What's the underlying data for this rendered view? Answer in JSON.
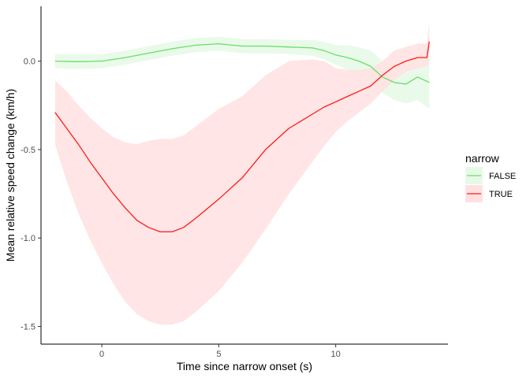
{
  "chart_data": {
    "type": "line",
    "xlabel": "Time since narrow onset (s)",
    "ylabel": "Mean relative speed change (km/h)",
    "xlim": [
      -2.6,
      14.8
    ],
    "ylim": [
      -1.6,
      0.31
    ],
    "x_ticks": [
      0,
      5,
      10
    ],
    "x_tick_labels": [
      "0",
      "5",
      "10"
    ],
    "y_ticks": [
      0.0,
      -0.5,
      -1.0,
      -1.5
    ],
    "y_tick_labels": [
      "0.0",
      "-0.5",
      "-1.0",
      "-1.5"
    ],
    "grid": false,
    "legend": {
      "title": "narrow",
      "position": "right"
    },
    "series": [
      {
        "name": "FALSE",
        "color": "#66e066",
        "band_color": "#e6f9e6",
        "x": [
          -2,
          -1,
          0,
          1,
          2,
          3,
          4,
          5,
          6,
          7,
          8,
          9,
          9.5,
          10,
          10.5,
          11,
          11.5,
          12,
          12.5,
          13,
          13.5,
          14
        ],
        "y": [
          0.0,
          -0.003,
          0.0,
          0.02,
          0.045,
          0.07,
          0.09,
          0.098,
          0.085,
          0.085,
          0.08,
          0.075,
          0.06,
          0.035,
          0.02,
          0.0,
          -0.03,
          -0.09,
          -0.12,
          -0.13,
          -0.09,
          -0.12
        ],
        "lower": [
          -0.04,
          -0.045,
          -0.04,
          -0.02,
          0.005,
          0.03,
          0.05,
          0.058,
          0.045,
          0.045,
          0.04,
          0.03,
          0.01,
          -0.02,
          -0.05,
          -0.08,
          -0.12,
          -0.18,
          -0.22,
          -0.24,
          -0.22,
          -0.27
        ],
        "upper": [
          0.04,
          0.04,
          0.04,
          0.06,
          0.085,
          0.11,
          0.13,
          0.138,
          0.125,
          0.125,
          0.12,
          0.12,
          0.11,
          0.09,
          0.09,
          0.08,
          0.06,
          0.0,
          -0.02,
          -0.03,
          0.03,
          0.03
        ]
      },
      {
        "name": "TRUE",
        "color": "#ff1a1a",
        "band_color": "#ffe0e0",
        "x": [
          -2,
          -1.5,
          -1,
          -0.5,
          0,
          0.5,
          1,
          1.5,
          2,
          2.5,
          3,
          3.5,
          4,
          5,
          6,
          7,
          8,
          9,
          9.5,
          10,
          10.5,
          11,
          11.5,
          12,
          12.5,
          13,
          13.5,
          13.9,
          14
        ],
        "y": [
          -0.29,
          -0.38,
          -0.47,
          -0.57,
          -0.66,
          -0.75,
          -0.83,
          -0.9,
          -0.94,
          -0.965,
          -0.965,
          -0.94,
          -0.89,
          -0.78,
          -0.66,
          -0.5,
          -0.38,
          -0.3,
          -0.26,
          -0.23,
          -0.2,
          -0.17,
          -0.14,
          -0.08,
          -0.03,
          0.0,
          0.02,
          0.02,
          0.11
        ],
        "lower": [
          -0.47,
          -0.68,
          -0.86,
          -1.01,
          -1.14,
          -1.26,
          -1.36,
          -1.43,
          -1.47,
          -1.49,
          -1.49,
          -1.47,
          -1.42,
          -1.3,
          -1.14,
          -0.95,
          -0.75,
          -0.57,
          -0.48,
          -0.4,
          -0.34,
          -0.29,
          -0.24,
          -0.17,
          -0.11,
          -0.06,
          -0.04,
          -0.03,
          0.0
        ],
        "upper": [
          -0.11,
          -0.17,
          -0.25,
          -0.32,
          -0.38,
          -0.43,
          -0.46,
          -0.47,
          -0.45,
          -0.44,
          -0.44,
          -0.42,
          -0.37,
          -0.27,
          -0.2,
          -0.08,
          0.0,
          0.01,
          0.0,
          -0.04,
          -0.05,
          -0.05,
          -0.04,
          0.0,
          0.06,
          0.08,
          0.1,
          0.1,
          0.22
        ]
      }
    ]
  }
}
